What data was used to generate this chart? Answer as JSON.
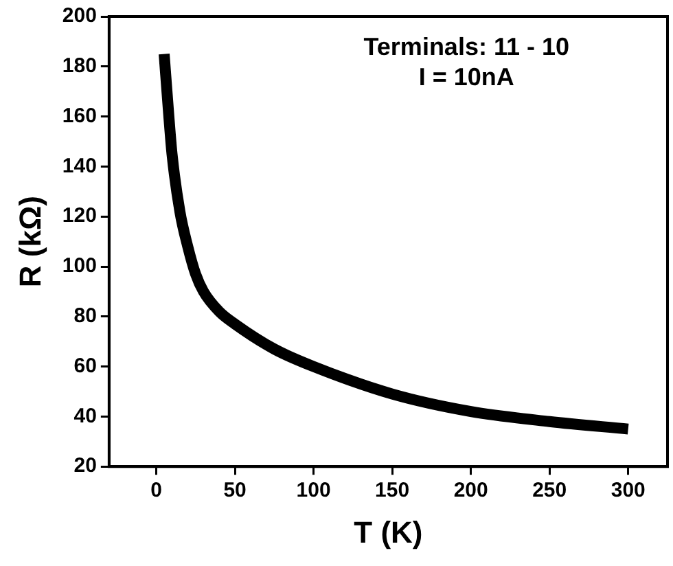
{
  "chart_data": {
    "type": "line",
    "xlabel": "T (K)",
    "ylabel": "R (kΩ)",
    "annotations": [
      "Terminals: 11 - 10",
      "I = 10nA"
    ],
    "x": [
      5,
      8,
      10,
      15,
      20,
      25,
      30,
      40,
      50,
      75,
      100,
      150,
      200,
      250,
      300
    ],
    "series": [
      {
        "color": "#000000",
        "values": [
          185,
          160,
          145,
          122,
          108,
          97,
          90,
          82,
          77,
          67,
          60,
          49,
          42,
          38,
          35
        ]
      }
    ],
    "xlim": [
      -30,
      325
    ],
    "xticks": [
      0,
      50,
      100,
      150,
      200,
      250,
      300
    ],
    "ylim": [
      20,
      200
    ],
    "yticks": [
      20,
      40,
      60,
      80,
      100,
      120,
      140,
      160,
      180,
      200
    ],
    "grid": false,
    "legend": false,
    "marker": "none",
    "line_style": "solid"
  }
}
